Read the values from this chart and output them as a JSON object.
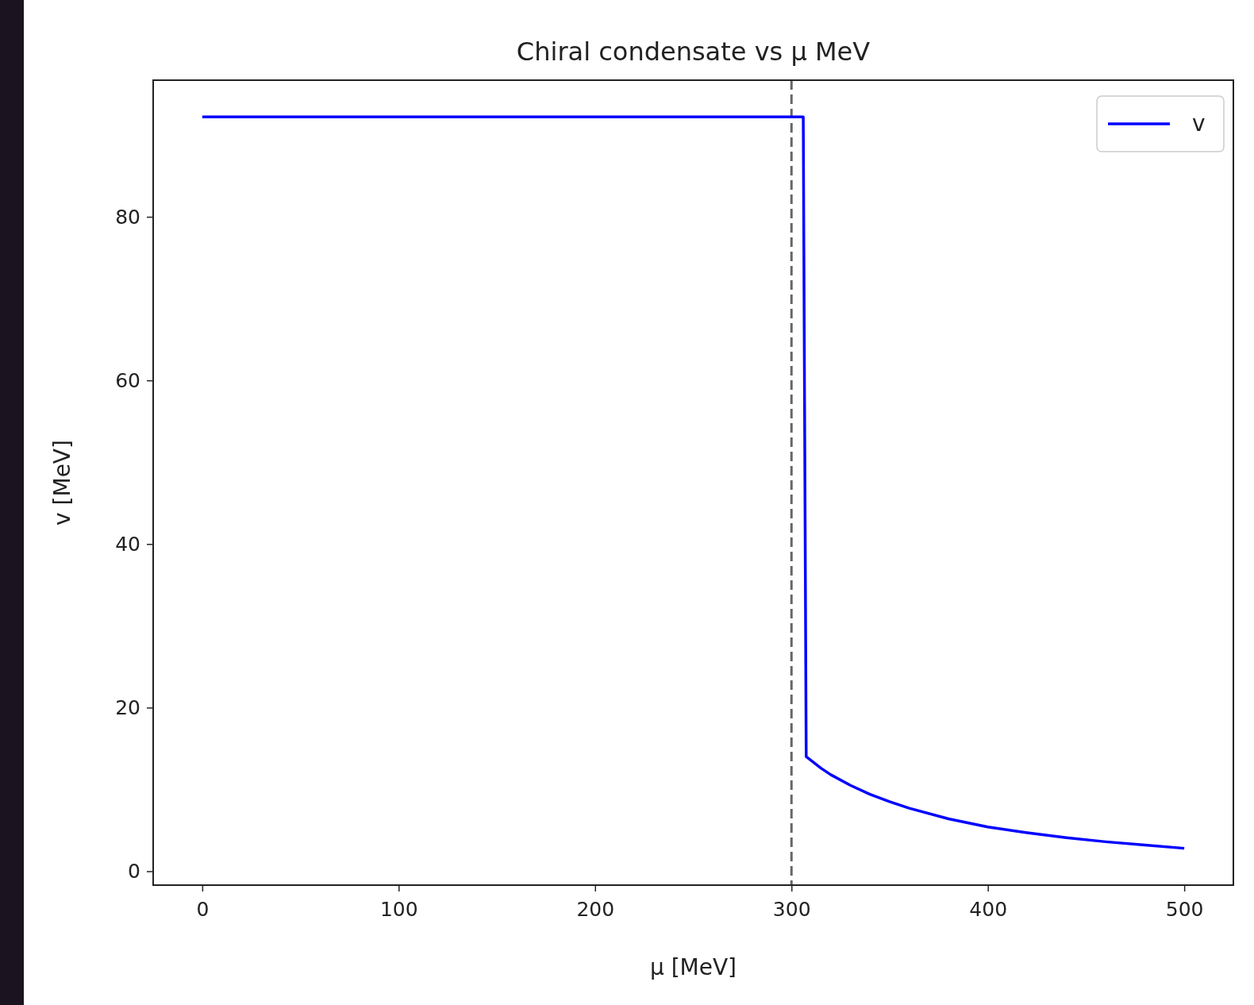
{
  "chart_data": {
    "type": "line",
    "title": "Chiral condensate vs μ MeV",
    "xlabel": "μ [MeV]",
    "ylabel": "v [MeV]",
    "x": [
      0,
      306,
      307.5,
      315,
      320,
      330,
      340,
      350,
      360,
      380,
      400,
      420,
      440,
      460,
      480,
      500
    ],
    "series": [
      {
        "name": "v",
        "color": "#0000ff",
        "values": [
          92.2,
          92.2,
          14,
          12.6,
          11.8,
          10.5,
          9.4,
          8.5,
          7.7,
          6.4,
          5.4,
          4.7,
          4.1,
          3.6,
          3.2,
          2.8
        ]
      }
    ],
    "xlim": [
      -25,
      525
    ],
    "ylim": [
      -1.7,
      96.7
    ],
    "xticks": [
      0,
      100,
      200,
      300,
      400,
      500
    ],
    "yticks": [
      0,
      20,
      40,
      60,
      80
    ],
    "ref_lines": [
      {
        "axis": "x",
        "value": 300,
        "color": "#666666",
        "line_style": "dashed"
      }
    ],
    "grid": false,
    "legend": "top right",
    "line_style": "solid",
    "marker": "none"
  }
}
